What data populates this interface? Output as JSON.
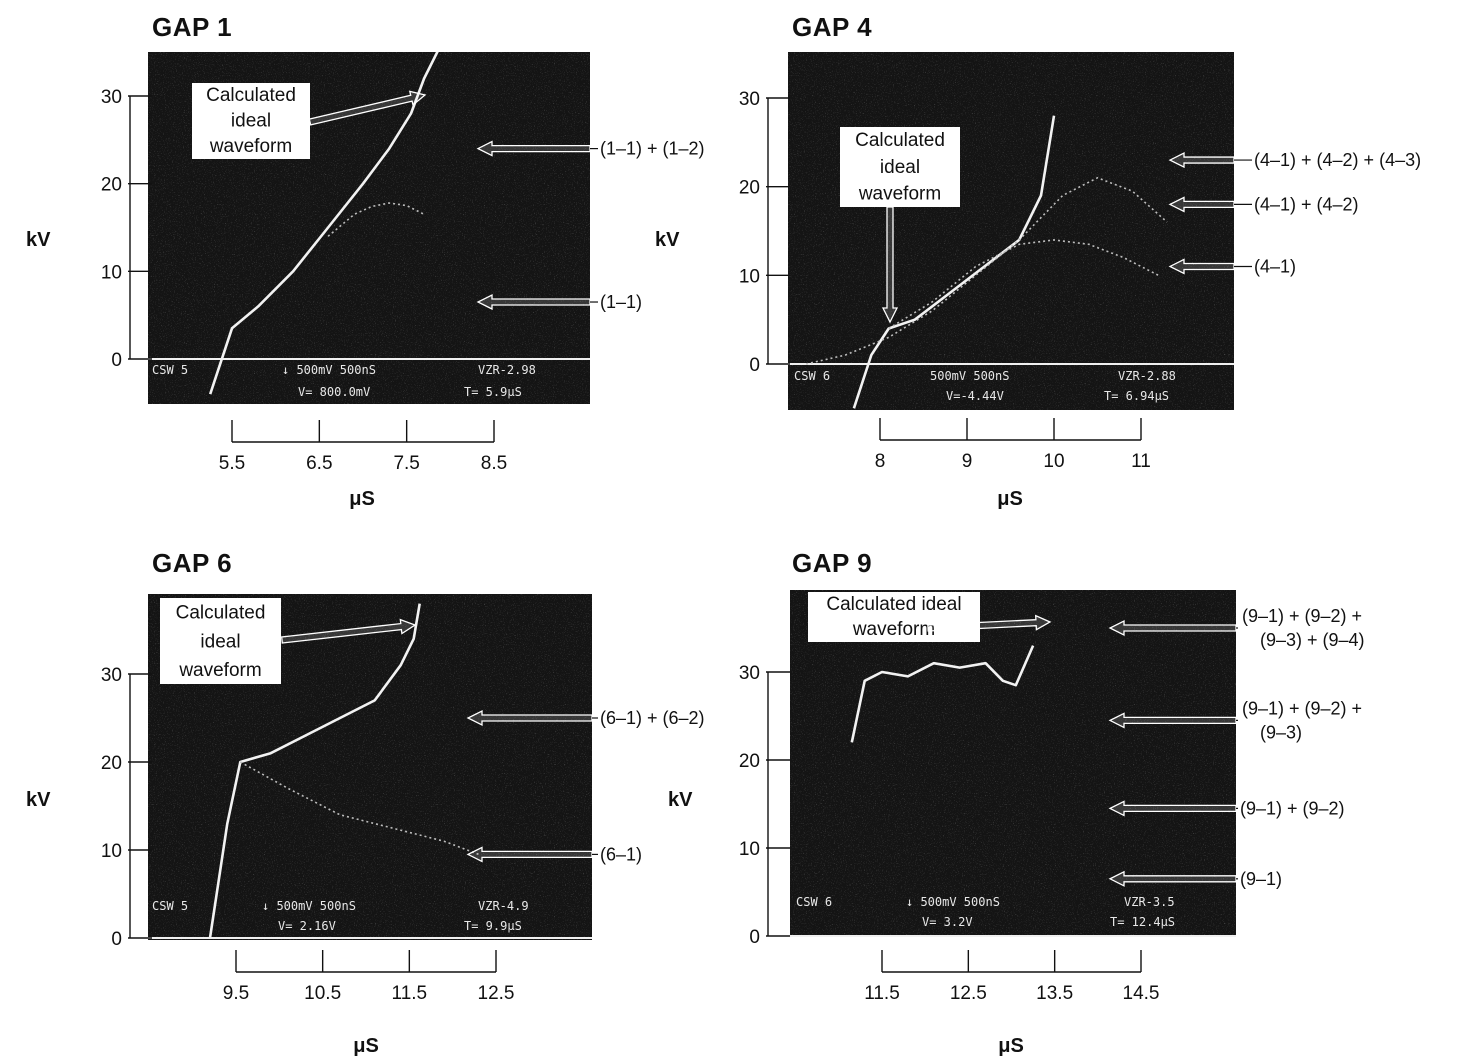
{
  "colors": {
    "screen": "#141414",
    "trace": "#f2f2f2",
    "dim_trace": "#bdbdbd",
    "ink": "#111111",
    "label_bg": "#ffffff"
  },
  "chart_data": [
    {
      "type": "line",
      "title": "GAP 1",
      "ylabel": "kV",
      "xlabel": "μS",
      "yticks": [
        "0",
        "10",
        "20",
        "30"
      ],
      "xticks": [
        "5.5",
        "6.5",
        "7.5",
        "8.5"
      ],
      "xlim": [
        4.5,
        9.0
      ],
      "ylim": [
        -5,
        35
      ],
      "calc_label": [
        "Calculated",
        "ideal",
        "waveform"
      ],
      "annotations": [
        {
          "text": "(1-1) + (1-2)",
          "y": 24
        },
        {
          "text": "(1-1)",
          "y": 6.5
        }
      ],
      "osc_line1": [
        "CSW 5",
        "↓ 500mV  500nS",
        "VZR-2.98"
      ],
      "osc_line2": [
        "V= 800.0mV",
        "T= 5.9μS"
      ],
      "series": [
        {
          "name": "Calculated ideal waveform",
          "style": "bright",
          "x": [
            5.25,
            5.5,
            5.8,
            6.2,
            6.6,
            7.0,
            7.3,
            7.55,
            7.7,
            7.9
          ],
          "y": [
            -4,
            3.5,
            6,
            10,
            15,
            20,
            24,
            28,
            32,
            36
          ]
        },
        {
          "name": "(1-1) + (1-2)",
          "style": "dim",
          "x": [
            6.6,
            6.9,
            7.1,
            7.3,
            7.5,
            7.7
          ],
          "y": [
            14,
            16.5,
            17.4,
            17.8,
            17.5,
            16.5
          ]
        }
      ]
    },
    {
      "type": "line",
      "title": "GAP 4",
      "ylabel": "kV",
      "xlabel": "μS",
      "yticks": [
        "0",
        "10",
        "20",
        "30"
      ],
      "xticks": [
        "8",
        "9",
        "10",
        "11"
      ],
      "xlim": [
        7.0,
        11.9
      ],
      "ylim": [
        -5,
        36
      ],
      "calc_label": [
        "Calculated",
        "ideal",
        "waveform"
      ],
      "annotations": [
        {
          "text": "(4-1) + (4-2) + (4-3)",
          "y": 23
        },
        {
          "text": "(4-1) + (4-2)",
          "y": 18
        },
        {
          "text": "(4-1)",
          "y": 11
        }
      ],
      "osc_line1": [
        "CSW 6",
        "500mV  500nS",
        "VZR-2.88"
      ],
      "osc_line2": [
        "V=-4.44V",
        "T= 6.94μS"
      ],
      "series": [
        {
          "name": "Calculated ideal waveform",
          "style": "bright",
          "x": [
            7.7,
            7.9,
            8.1,
            8.4,
            8.8,
            9.2,
            9.6,
            9.85,
            10.0
          ],
          "y": [
            -5,
            1,
            4,
            5,
            8,
            11,
            14,
            19,
            28
          ]
        },
        {
          "name": "(4-1) + (4-2) + (4-3)",
          "style": "dim",
          "x": [
            7.15,
            7.6,
            8.1,
            8.6,
            9.1,
            9.6,
            10.1,
            10.5,
            10.9,
            11.3
          ],
          "y": [
            0,
            1,
            3,
            6,
            10,
            14,
            19,
            21,
            19.5,
            16
          ]
        },
        {
          "name": "(4-1)",
          "style": "dim",
          "x": [
            8.1,
            8.6,
            9.1,
            9.6,
            10.0,
            10.4,
            10.8,
            11.2
          ],
          "y": [
            4,
            7,
            11,
            13.5,
            14,
            13.5,
            12,
            10
          ]
        }
      ]
    },
    {
      "type": "line",
      "title": "GAP 6",
      "ylabel": "kV",
      "xlabel": "μS",
      "yticks": [
        "0",
        "10",
        "20",
        "30"
      ],
      "xticks": [
        "9.5",
        "10.5",
        "11.5",
        "12.5"
      ],
      "xlim": [
        8.35,
        12.95
      ],
      "ylim": [
        0,
        40
      ],
      "calc_label": [
        "Calculated",
        "ideal",
        "waveform"
      ],
      "annotations": [
        {
          "text": "(6-1) + (6-2)",
          "y": 25
        },
        {
          "text": "(6-1)",
          "y": 9.5
        }
      ],
      "osc_line1": [
        "CSW 5",
        "↓ 500mV  500nS",
        "VZR-4.9"
      ],
      "osc_line2": [
        "V= 2.16V",
        "T= 9.9μS"
      ],
      "series": [
        {
          "name": "Calculated ideal waveform",
          "style": "bright",
          "x": [
            9.2,
            9.4,
            9.55,
            9.9,
            10.3,
            10.7,
            11.1,
            11.4,
            11.55,
            11.62
          ],
          "y": [
            0,
            13,
            20,
            21,
            23,
            25,
            27,
            31,
            34,
            38
          ]
        },
        {
          "name": "(6-1)",
          "style": "dim",
          "x": [
            9.55,
            10.1,
            10.7,
            11.3,
            11.9,
            12.3
          ],
          "y": [
            20,
            17,
            14,
            12.5,
            11,
            9.5
          ]
        }
      ]
    },
    {
      "type": "line",
      "title": "GAP 9",
      "ylabel": "kV",
      "xlabel": "μS",
      "yticks": [
        "0",
        "10",
        "20",
        "30"
      ],
      "xticks": [
        "11.5",
        "12.5",
        "13.5",
        "14.5"
      ],
      "xlim": [
        10.6,
        14.5
      ],
      "ylim": [
        -1,
        40
      ],
      "calc_label": [
        "Calculated ideal",
        "waveform"
      ],
      "annotations": [
        {
          "lines": [
            "(9-1) + (9-2) +",
            "(9-3) + (9-4)"
          ],
          "y": 35
        },
        {
          "lines": [
            "(9-1) + (9-2) +",
            "(9-3)"
          ],
          "y": 24.5
        },
        {
          "text": "(9-1) + (9-2)",
          "y": 14.5
        },
        {
          "text": "(9-1)",
          "y": 6.5
        }
      ],
      "osc_line1": [
        "CSW 6",
        "↓ 500mV  500nS",
        "VZR-3.5"
      ],
      "osc_line2": [
        "V= 3.2V",
        "T= 12.4μS"
      ],
      "series": [
        {
          "name": "Calculated ideal waveform",
          "style": "bright",
          "x": [
            11.15,
            11.3,
            11.5,
            11.8,
            12.1,
            12.4,
            12.7,
            12.9,
            13.05,
            13.25
          ],
          "y": [
            22,
            29,
            30,
            29.5,
            31,
            30.5,
            31,
            29,
            28.5,
            33
          ]
        }
      ]
    }
  ]
}
